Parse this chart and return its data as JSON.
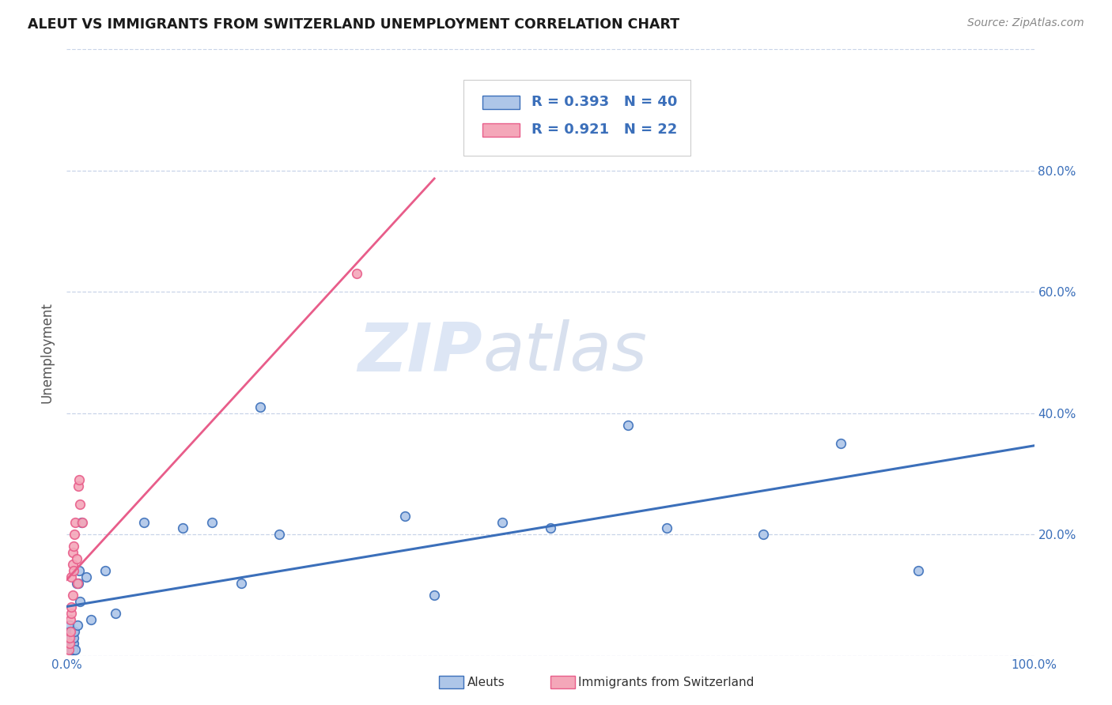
{
  "title": "ALEUT VS IMMIGRANTS FROM SWITZERLAND UNEMPLOYMENT CORRELATION CHART",
  "source": "Source: ZipAtlas.com",
  "ylabel": "Unemployment",
  "xlim": [
    0,
    1.0
  ],
  "ylim": [
    0,
    1.0
  ],
  "aleuts_x": [
    0.002,
    0.003,
    0.003,
    0.004,
    0.004,
    0.005,
    0.005,
    0.005,
    0.006,
    0.006,
    0.006,
    0.007,
    0.007,
    0.008,
    0.009,
    0.01,
    0.011,
    0.012,
    0.013,
    0.014,
    0.015,
    0.02,
    0.025,
    0.04,
    0.05,
    0.08,
    0.12,
    0.15,
    0.18,
    0.2,
    0.22,
    0.35,
    0.38,
    0.45,
    0.5,
    0.58,
    0.62,
    0.72,
    0.8,
    0.88
  ],
  "aleuts_y": [
    0.04,
    0.03,
    0.05,
    0.02,
    0.04,
    0.01,
    0.02,
    0.03,
    0.01,
    0.02,
    0.04,
    0.02,
    0.03,
    0.04,
    0.01,
    0.12,
    0.05,
    0.12,
    0.14,
    0.09,
    0.22,
    0.13,
    0.06,
    0.14,
    0.07,
    0.22,
    0.21,
    0.22,
    0.12,
    0.41,
    0.2,
    0.23,
    0.1,
    0.22,
    0.21,
    0.38,
    0.21,
    0.2,
    0.35,
    0.14
  ],
  "swiss_x": [
    0.002,
    0.003,
    0.003,
    0.004,
    0.004,
    0.005,
    0.005,
    0.005,
    0.006,
    0.006,
    0.006,
    0.007,
    0.007,
    0.008,
    0.009,
    0.01,
    0.011,
    0.012,
    0.013,
    0.014,
    0.016,
    0.3
  ],
  "swiss_y": [
    0.01,
    0.02,
    0.03,
    0.04,
    0.06,
    0.07,
    0.08,
    0.13,
    0.1,
    0.15,
    0.17,
    0.14,
    0.18,
    0.2,
    0.22,
    0.16,
    0.12,
    0.28,
    0.29,
    0.25,
    0.22,
    0.63
  ],
  "aleut_color": "#aec6e8",
  "swiss_color": "#f4a7b9",
  "aleut_line_color": "#3b6fba",
  "swiss_line_color": "#e85d8a",
  "aleut_R": 0.393,
  "aleut_N": 40,
  "swiss_R": 0.921,
  "swiss_N": 22,
  "marker_size": 70,
  "marker_edge_width": 1.2,
  "background_color": "#ffffff",
  "grid_color": "#c8d4e8",
  "watermark_zip": "ZIP",
  "watermark_atlas": "atlas",
  "watermark_color": "#dde6f5"
}
